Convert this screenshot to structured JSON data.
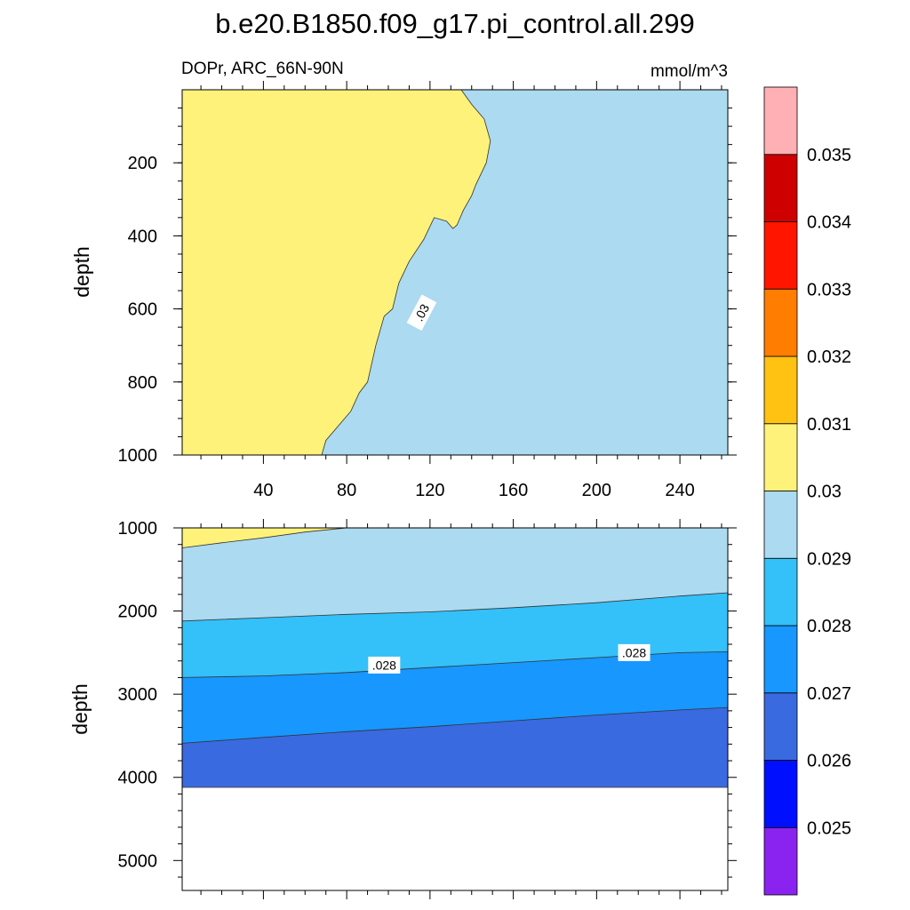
{
  "figure": {
    "title": "b.e20.B1850.f09_g17.pi_control.all.299",
    "variable_label": "DOPr, ARC_66N-90N",
    "units": "mmol/m^3"
  },
  "chart_data": {
    "type": "contour",
    "x_ticks": [
      40,
      80,
      120,
      160,
      200,
      240
    ],
    "x_range": [
      1,
      263
    ],
    "levels": [
      0.025,
      0.026,
      0.027,
      0.028,
      0.029,
      0.03,
      0.031,
      0.032,
      0.033,
      0.034,
      0.035
    ],
    "level_labels": [
      "0.025",
      "0.026",
      "0.027",
      "0.028",
      "0.029",
      "0.03",
      "0.031",
      "0.032",
      "0.033",
      "0.034",
      "0.035"
    ],
    "colors": [
      "#8a22f0",
      "#0010ff",
      "#3a6ae0",
      "#1797ff",
      "#34c0f8",
      "#acdaf0",
      "#fff27a",
      "#ffc112",
      "#ff7d00",
      "#ff1500",
      "#ce0000",
      "#ffb0b4"
    ],
    "panels": [
      {
        "name": "upper",
        "ylabel": "depth",
        "y_ticks": [
          200,
          400,
          600,
          800,
          1000
        ],
        "y_range": [
          0,
          1000
        ],
        "contour_labels": [
          {
            "text": ".03",
            "x": 116,
            "y": 610
          }
        ],
        "regions": [
          {
            "name": "0.03-0.031",
            "color": "#fff27a",
            "boundary": [
              [
                135,
                0
              ],
              [
                140,
                40
              ],
              [
                146,
                80
              ],
              [
                149,
                140
              ],
              [
                147,
                200
              ],
              [
                142,
                260
              ],
              [
                140,
                290
              ],
              [
                136,
                330
              ],
              [
                133,
                370
              ],
              [
                131,
                380
              ],
              [
                128,
                360
              ],
              [
                122,
                350
              ],
              [
                117,
                410
              ],
              [
                110,
                470
              ],
              [
                105,
                530
              ],
              [
                102,
                600
              ],
              [
                98,
                620
              ],
              [
                94,
                700
              ],
              [
                90,
                800
              ],
              [
                86,
                830
              ],
              [
                82,
                880
              ],
              [
                76,
                920
              ],
              [
                70,
                960
              ],
              [
                68,
                1000
              ]
            ]
          }
        ]
      },
      {
        "name": "lower",
        "ylabel": "depth",
        "y_ticks": [
          1000,
          2000,
          3000,
          4000,
          5000
        ],
        "y_range": [
          1000,
          5360
        ],
        "bottom_data_depth": 4120,
        "contour_labels": [
          {
            "text": ".028",
            "x": 98,
            "y": 2650
          },
          {
            "text": ".028",
            "x": 218,
            "y": 2500
          }
        ],
        "contours": [
          {
            "level": "0.03",
            "points": [
              [
                1,
                1240
              ],
              [
                20,
                1180
              ],
              [
                40,
                1120
              ],
              [
                60,
                1050
              ],
              [
                80,
                1000
              ]
            ]
          },
          {
            "level": "0.029",
            "points": [
              [
                1,
                2120
              ],
              [
                40,
                2080
              ],
              [
                80,
                2040
              ],
              [
                120,
                2010
              ],
              [
                160,
                1960
              ],
              [
                200,
                1900
              ],
              [
                240,
                1820
              ],
              [
                263,
                1780
              ]
            ]
          },
          {
            "level": "0.028",
            "points": [
              [
                1,
                2800
              ],
              [
                40,
                2780
              ],
              [
                80,
                2740
              ],
              [
                120,
                2680
              ],
              [
                160,
                2620
              ],
              [
                200,
                2560
              ],
              [
                240,
                2500
              ],
              [
                263,
                2490
              ]
            ]
          },
          {
            "level": "0.027",
            "points": [
              [
                1,
                3590
              ],
              [
                40,
                3520
              ],
              [
                80,
                3450
              ],
              [
                120,
                3390
              ],
              [
                160,
                3320
              ],
              [
                200,
                3250
              ],
              [
                240,
                3190
              ],
              [
                263,
                3160
              ]
            ]
          }
        ]
      }
    ]
  }
}
